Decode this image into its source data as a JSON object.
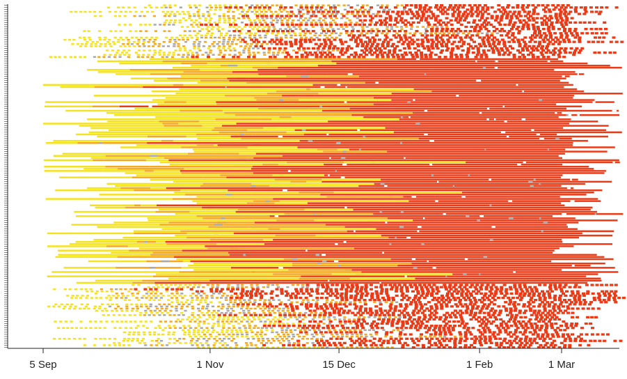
{
  "chart_data": {
    "type": "heatmap",
    "title": "",
    "xlabel": "",
    "ylabel": "",
    "x_ticks": [
      {
        "label": "5 Sep",
        "date": "09-05"
      },
      {
        "label": "1 Nov",
        "date": "11-01"
      },
      {
        "label": "15 Dec",
        "date": "12-15"
      },
      {
        "label": "1 Feb",
        "date": "02-01"
      },
      {
        "label": "1 Mar",
        "date": "03-01"
      }
    ],
    "xlim": [
      "08-24",
      "03-25"
    ],
    "row_count": 160,
    "status_colors": {
      "yellow": "#f5e21e",
      "orange": "#f6a81a",
      "gray": "#a9a9a9",
      "red": "#ea3a16",
      "red_dot": "#ffd46a"
    },
    "row_groups": [
      {
        "name": "sparse-top",
        "rows": 25
      },
      {
        "name": "dense-middle",
        "rows": 105
      },
      {
        "name": "sparse-bottom",
        "rows": 30
      }
    ]
  }
}
